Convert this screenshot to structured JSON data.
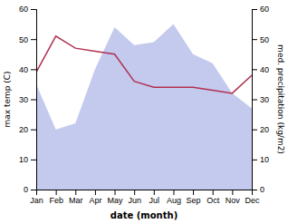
{
  "chart_data": {
    "type": "line",
    "x_label": "date (month)",
    "y_label": "max temp (C)",
    "y2_label": "med. precipitation (kg/m2)",
    "categories": [
      "Jan",
      "Feb",
      "Mar",
      "Apr",
      "May",
      "Jun",
      "Jul",
      "Aug",
      "Sep",
      "Oct",
      "Nov",
      "Dec"
    ],
    "series": [
      {
        "type": "area",
        "axis": "y2",
        "color": "#b0b8e8",
        "values": [
          35,
          20,
          22,
          40,
          54,
          48,
          49,
          55,
          45,
          42,
          32,
          27
        ]
      },
      {
        "type": "line",
        "color": "#b03050",
        "values": [
          39,
          51,
          47,
          46,
          45,
          36,
          34,
          34,
          34,
          33,
          32,
          38
        ]
      }
    ],
    "ylim": [
      0,
      60
    ],
    "yticks": [
      0,
      10,
      20,
      30,
      40,
      50,
      60
    ],
    "y2lim": [
      0,
      60
    ],
    "y2ticks": [
      0,
      10,
      20,
      30,
      40,
      50,
      60
    ],
    "grid": false
  }
}
